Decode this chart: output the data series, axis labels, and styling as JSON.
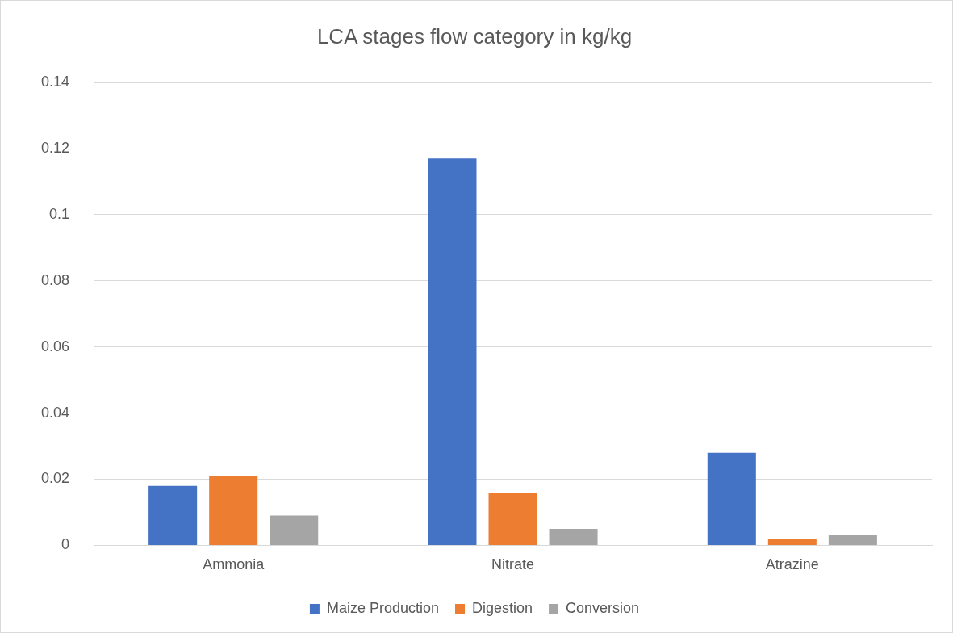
{
  "chart_data": {
    "type": "bar",
    "title": "LCA stages flow category in kg/kg",
    "categories": [
      "Ammonia",
      "Nitrate",
      "Atrazine"
    ],
    "series": [
      {
        "name": "Maize Production",
        "color": "#4472c4",
        "values": [
          0.018,
          0.117,
          0.028
        ]
      },
      {
        "name": "Digestion",
        "color": "#ed7d31",
        "values": [
          0.021,
          0.016,
          0.002
        ]
      },
      {
        "name": "Conversion",
        "color": "#a5a5a5",
        "values": [
          0.009,
          0.005,
          0.003
        ]
      }
    ],
    "ylim": [
      0,
      0.14
    ],
    "yticks": [
      0,
      0.02,
      0.04,
      0.06,
      0.08,
      0.1,
      0.12,
      0.14
    ],
    "grid": "y",
    "legend": "bottom"
  }
}
